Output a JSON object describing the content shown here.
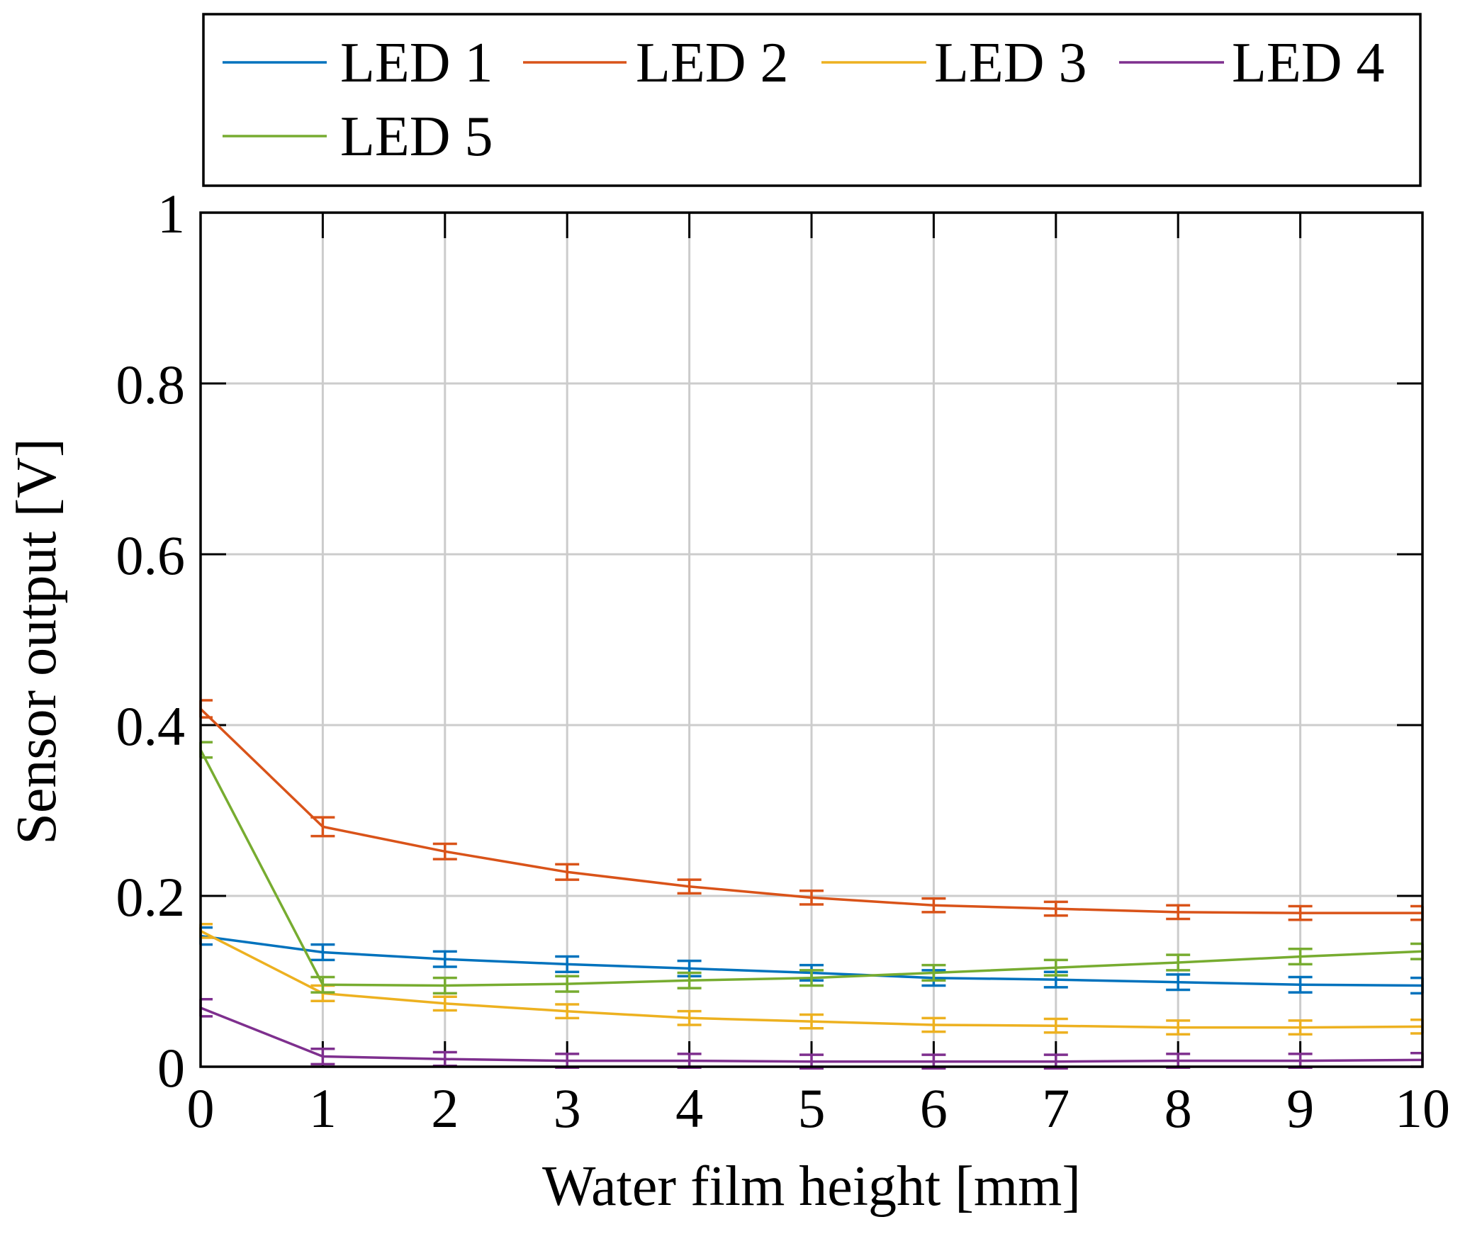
{
  "chart_data": {
    "type": "line",
    "title": "",
    "xlabel": "Water film height [mm]",
    "ylabel": "Sensor output [V]",
    "xlim": [
      0,
      10
    ],
    "ylim": [
      0,
      1
    ],
    "xticks": [
      0,
      1,
      2,
      3,
      4,
      5,
      6,
      7,
      8,
      9,
      10
    ],
    "xtick_labels": [
      "0",
      "1",
      "2",
      "3",
      "4",
      "5",
      "6",
      "7",
      "8",
      "9",
      "10"
    ],
    "yticks": [
      0,
      0.2,
      0.4,
      0.6,
      0.8,
      1
    ],
    "ytick_labels": [
      "0",
      "0.2",
      "0.4",
      "0.6",
      "0.8",
      "1"
    ],
    "grid": true,
    "legend_position": "top-outside",
    "error_bars": true,
    "x": [
      0,
      1,
      2,
      3,
      4,
      5,
      6,
      7,
      8,
      9,
      10
    ],
    "series": [
      {
        "name": "LED 1",
        "color": "#0072BD",
        "values": [
          0.153,
          0.134,
          0.126,
          0.12,
          0.115,
          0.11,
          0.104,
          0.102,
          0.099,
          0.096,
          0.095
        ],
        "errors": [
          0.01,
          0.009,
          0.009,
          0.009,
          0.009,
          0.009,
          0.009,
          0.009,
          0.009,
          0.009,
          0.009
        ]
      },
      {
        "name": "LED 2",
        "color": "#D95319",
        "values": [
          0.419,
          0.281,
          0.252,
          0.228,
          0.211,
          0.198,
          0.189,
          0.185,
          0.181,
          0.18,
          0.18
        ],
        "errors": [
          0.01,
          0.011,
          0.009,
          0.009,
          0.008,
          0.008,
          0.008,
          0.008,
          0.008,
          0.008,
          0.008
        ]
      },
      {
        "name": "LED 3",
        "color": "#EDB120",
        "values": [
          0.159,
          0.086,
          0.074,
          0.065,
          0.057,
          0.053,
          0.049,
          0.048,
          0.046,
          0.046,
          0.047
        ],
        "errors": [
          0.008,
          0.009,
          0.008,
          0.008,
          0.008,
          0.008,
          0.008,
          0.008,
          0.008,
          0.008,
          0.008
        ]
      },
      {
        "name": "LED 4",
        "color": "#7E2F8E",
        "values": [
          0.069,
          0.012,
          0.009,
          0.007,
          0.007,
          0.006,
          0.006,
          0.006,
          0.007,
          0.007,
          0.008
        ],
        "errors": [
          0.01,
          0.009,
          0.008,
          0.008,
          0.008,
          0.008,
          0.008,
          0.008,
          0.008,
          0.008,
          0.008
        ]
      },
      {
        "name": "LED 5",
        "color": "#77AC30",
        "values": [
          0.371,
          0.096,
          0.095,
          0.097,
          0.101,
          0.104,
          0.11,
          0.116,
          0.122,
          0.129,
          0.135
        ],
        "errors": [
          0.009,
          0.009,
          0.009,
          0.009,
          0.009,
          0.009,
          0.009,
          0.009,
          0.009,
          0.009,
          0.009
        ]
      }
    ]
  }
}
